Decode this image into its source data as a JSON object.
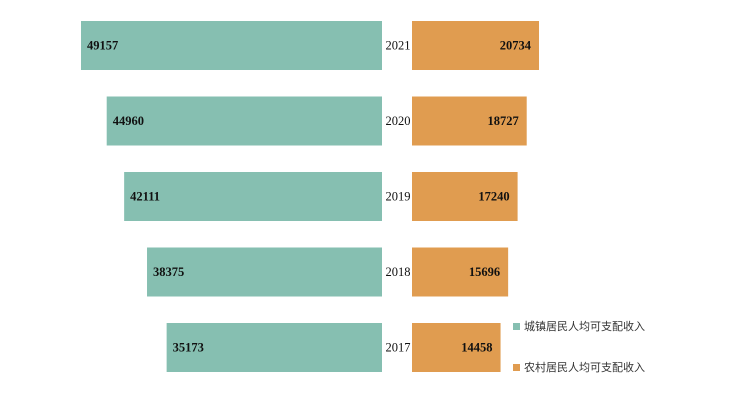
{
  "chart_data": {
    "type": "bar",
    "orientation": "horizontal-butterfly",
    "categories": [
      "2021",
      "2020",
      "2019",
      "2018",
      "2017"
    ],
    "series": [
      {
        "name": "城镇居民人均可支配收入",
        "values": [
          49157,
          44960,
          42111,
          38375,
          35173
        ],
        "color": "#86BFB1",
        "side": "left"
      },
      {
        "name": "农村居民人均可支配收入",
        "values": [
          20734,
          18727,
          17240,
          15696,
          14458
        ],
        "color": "#E09C50",
        "side": "right"
      }
    ],
    "legend_position": "bottom-right",
    "grid": false
  }
}
